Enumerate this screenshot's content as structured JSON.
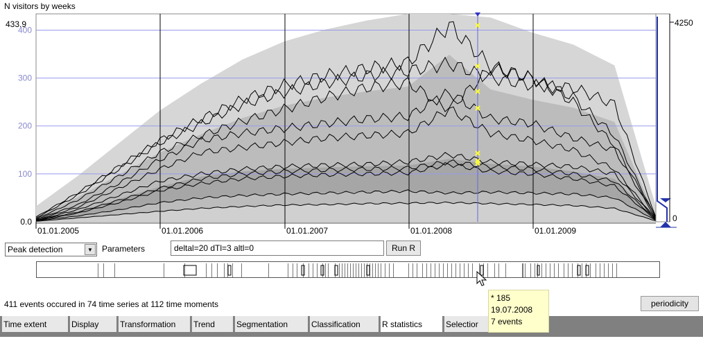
{
  "chart": {
    "title": "N visitors by weeks",
    "y_max_label": "433.9",
    "y_ticks": [
      "400",
      "300",
      "200",
      "100",
      "0.0"
    ],
    "x_ticks": [
      "01.01.2005",
      "01.01.2006",
      "01.01.2007",
      "01.01.2008",
      "01.01.2009"
    ],
    "right_scale_top": "4250",
    "right_scale_bottom": "0",
    "colors": {
      "grid": "#9999ee",
      "band_light": "#d6d6d6",
      "band_mid": "#bcbcbc",
      "band_dark": "#a6a6a6",
      "marker": "#ffff33",
      "cursor": "#6666dd"
    }
  },
  "chart_data": {
    "type": "line",
    "title": "N visitors by weeks",
    "xlabel": "",
    "ylabel": "",
    "x_ticks": [
      "01.01.2005",
      "01.01.2006",
      "01.01.2007",
      "01.01.2008",
      "01.01.2009"
    ],
    "ylim": [
      0,
      433.9
    ],
    "y_ticks": [
      0,
      100,
      200,
      300,
      400
    ],
    "selected_time_line": "19.07.2008",
    "series": [
      {
        "values": [
          10,
          60,
          115,
          170,
          215,
          255,
          285,
          305,
          320,
          332,
          410,
          325,
          300,
          250,
          160,
          10
        ]
      },
      {
        "values": [
          8,
          55,
          110,
          165,
          205,
          245,
          270,
          290,
          305,
          315,
          330,
          300,
          285,
          280,
          245,
          10
        ]
      },
      {
        "values": [
          6,
          45,
          95,
          145,
          180,
          210,
          235,
          260,
          280,
          290,
          235,
          320,
          300,
          260,
          180,
          8
        ]
      },
      {
        "values": [
          5,
          35,
          80,
          130,
          170,
          185,
          195,
          205,
          215,
          220,
          270,
          215,
          205,
          175,
          150,
          7
        ]
      },
      {
        "values": [
          4,
          30,
          70,
          110,
          145,
          155,
          165,
          175,
          180,
          185,
          235,
          185,
          170,
          150,
          110,
          6
        ]
      },
      {
        "values": [
          3,
          25,
          55,
          85,
          100,
          110,
          115,
          118,
          120,
          125,
          140,
          125,
          120,
          115,
          100,
          5
        ]
      },
      {
        "values": [
          3,
          20,
          45,
          70,
          90,
          100,
          105,
          108,
          110,
          112,
          125,
          115,
          110,
          100,
          85,
          5
        ]
      },
      {
        "values": [
          2,
          18,
          40,
          65,
          80,
          90,
          95,
          98,
          100,
          102,
          120,
          105,
          100,
          90,
          75,
          4
        ]
      },
      {
        "values": [
          2,
          12,
          25,
          40,
          50,
          55,
          58,
          60,
          62,
          64,
          60,
          62,
          60,
          58,
          50,
          3
        ]
      },
      {
        "values": [
          1,
          8,
          15,
          22,
          28,
          32,
          35,
          36,
          38,
          39,
          40,
          38,
          36,
          34,
          28,
          2
        ]
      }
    ],
    "peak_markers": [
      410,
      325,
      272,
      237,
      143,
      127,
      122
    ]
  },
  "controls": {
    "method": "Peak detection",
    "params_label": "Parameters",
    "params_value": "deltal=20 dTl=3 altl=0",
    "run_label": "Run R"
  },
  "summary": "411 events occured in 74 time series at 112 time moments",
  "periodicity_label": "periodicity",
  "tabs": [
    "Time extent",
    "Display",
    "Transformation",
    "Trend",
    "Segmentation",
    "Classification",
    "R statistics",
    "Selectior"
  ],
  "tooltip": {
    "line1": "* 185",
    "line2": "19.07.2008",
    "line3": "7 events"
  },
  "icons": {
    "dropdown": "chevron-down-icon",
    "cursor": "mouse-pointer-icon"
  }
}
